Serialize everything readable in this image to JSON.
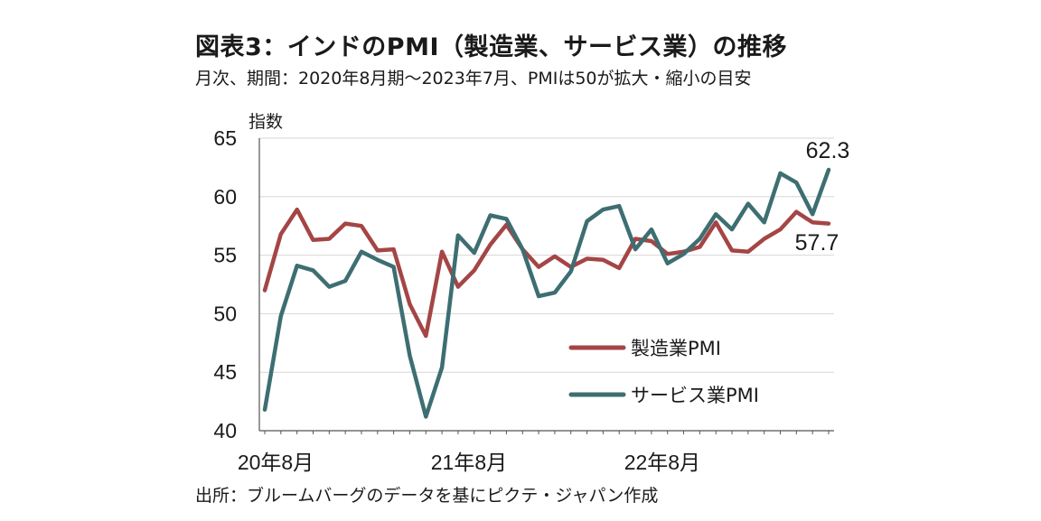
{
  "header": {
    "title": "図表3：インドのPMI（製造業、サービス業）の推移",
    "subtitle": "月次、期間：2020年8月期～2023年7月、PMIは50が拡大・縮小の目安"
  },
  "footer": {
    "source": "出所：ブルームバーグのデータを基にピクテ・ジャパン作成"
  },
  "chart_data": {
    "type": "line",
    "ylabel": "指数",
    "ylim": [
      40,
      65
    ],
    "yticks": [
      40,
      45,
      50,
      55,
      60,
      65
    ],
    "grid": true,
    "legend_position": "bottom-right",
    "x": [
      "2020-08",
      "2020-09",
      "2020-10",
      "2020-11",
      "2020-12",
      "2021-01",
      "2021-02",
      "2021-03",
      "2021-04",
      "2021-05",
      "2021-06",
      "2021-07",
      "2021-08",
      "2021-09",
      "2021-10",
      "2021-11",
      "2021-12",
      "2022-01",
      "2022-02",
      "2022-03",
      "2022-04",
      "2022-05",
      "2022-06",
      "2022-07",
      "2022-08",
      "2022-09",
      "2022-10",
      "2022-11",
      "2022-12",
      "2023-01",
      "2023-02",
      "2023-03",
      "2023-04",
      "2023-05",
      "2023-06",
      "2023-07"
    ],
    "xtick_labels": [
      {
        "x": "2020-08",
        "label": "20年8月"
      },
      {
        "x": "2021-08",
        "label": "21年8月"
      },
      {
        "x": "2022-08",
        "label": "22年8月"
      }
    ],
    "series": [
      {
        "name": "製造業PMI",
        "color": "#a54545",
        "values": [
          52.0,
          56.8,
          58.9,
          56.3,
          56.4,
          57.7,
          57.5,
          55.4,
          55.5,
          50.8,
          48.1,
          55.3,
          52.3,
          53.7,
          55.9,
          57.6,
          55.5,
          54.0,
          54.9,
          54.0,
          54.7,
          54.6,
          53.9,
          56.4,
          56.2,
          55.1,
          55.3,
          55.7,
          57.8,
          55.4,
          55.3,
          56.4,
          57.2,
          58.7,
          57.8,
          57.7
        ],
        "end_label": "57.7"
      },
      {
        "name": "サービス業PMI",
        "color": "#3d6e72",
        "values": [
          41.8,
          49.8,
          54.1,
          53.7,
          52.3,
          52.8,
          55.3,
          54.6,
          54.0,
          46.4,
          41.2,
          45.4,
          56.7,
          55.2,
          58.4,
          58.1,
          55.5,
          51.5,
          51.8,
          53.6,
          57.9,
          58.9,
          59.2,
          55.5,
          57.2,
          54.3,
          55.1,
          56.4,
          58.5,
          57.2,
          59.4,
          57.8,
          62.0,
          61.2,
          58.5,
          62.3
        ],
        "end_label": "62.3"
      }
    ]
  }
}
